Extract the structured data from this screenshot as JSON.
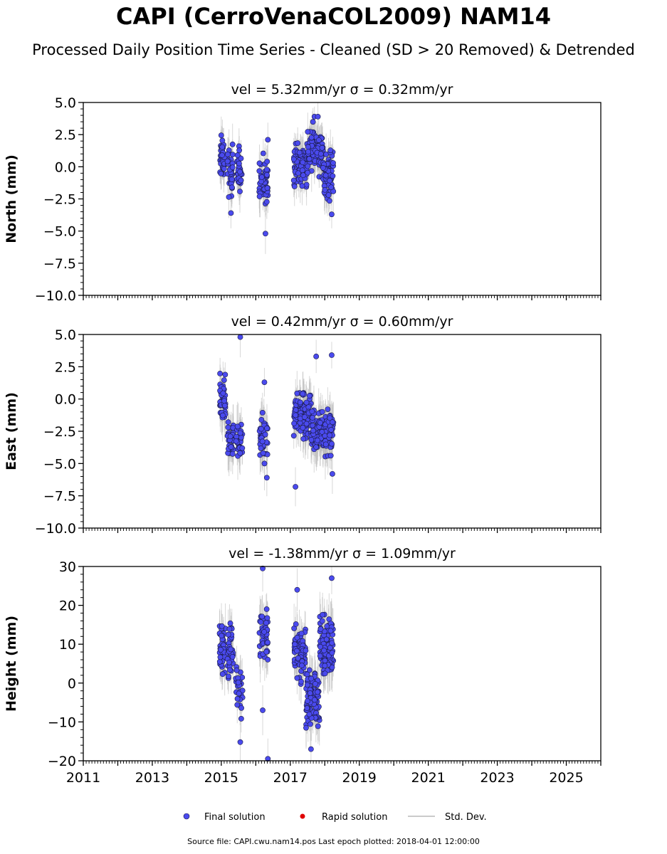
{
  "figure": {
    "title": "CAPI (CerroVenaCOL2009) NAM14",
    "subtitle": "Processed Daily Position Time Series - Cleaned (SD > 20 Removed) & Detrended",
    "source_note": "Source file: CAPI.cwu.nam14.pos  Last epoch plotted: 2018-04-01 12:00:00"
  },
  "colors": {
    "final": "#4a4aee",
    "final_edge": "#1a1a44",
    "rapid": "#e00000",
    "stddev": "#b8b8b8"
  },
  "chart_data": [
    {
      "type": "scatter",
      "title": "vel = 5.32mm/yr   σ = 0.32mm/yr",
      "ylabel": "North (mm)",
      "xlim": [
        2011,
        2026
      ],
      "ylim": [
        -10,
        5
      ],
      "yticks": [
        "−10.0",
        "−7.5",
        "−5.0",
        "−2.5",
        "0.0",
        "2.5",
        "5.0"
      ],
      "ytick_values": [
        -10,
        -7.5,
        -5,
        -2.5,
        0,
        2.5,
        5
      ],
      "clusters": [
        {
          "from": 2014.95,
          "to": 2015.1,
          "mean": 0.7,
          "spread": 1.2,
          "n": 40,
          "err": 1.5
        },
        {
          "from": 2015.18,
          "to": 2015.33,
          "mean": -0.3,
          "spread": 1.4,
          "n": 35,
          "err": 1.6
        },
        {
          "from": 2015.45,
          "to": 2015.6,
          "mean": -0.2,
          "spread": 1.3,
          "n": 30,
          "err": 1.6
        },
        {
          "from": 2016.1,
          "to": 2016.35,
          "mean": -1.2,
          "spread": 1.5,
          "n": 45,
          "err": 1.8
        },
        {
          "from": 2017.1,
          "to": 2017.5,
          "mean": 0.2,
          "spread": 1.2,
          "n": 90,
          "err": 1.5
        },
        {
          "from": 2017.5,
          "to": 2017.95,
          "mean": 1.3,
          "spread": 1.3,
          "n": 110,
          "err": 1.5
        },
        {
          "from": 2017.95,
          "to": 2018.25,
          "mean": -0.6,
          "spread": 1.5,
          "n": 70,
          "err": 1.6
        }
      ],
      "points": [
        [
          2016.28,
          -5.2
        ],
        [
          2016.35,
          2.1
        ],
        [
          2017.7,
          3.9
        ],
        [
          2017.8,
          3.9
        ],
        [
          2015.28,
          -3.6
        ],
        [
          2018.2,
          -3.7
        ]
      ]
    },
    {
      "type": "scatter",
      "title": "vel = 0.42mm/yr   σ = 0.60mm/yr",
      "ylabel": "East (mm)",
      "xlim": [
        2011,
        2026
      ],
      "ylim": [
        -10,
        5
      ],
      "yticks": [
        "−10.0",
        "−7.5",
        "−5.0",
        "−2.5",
        "0.0",
        "2.5",
        "5.0"
      ],
      "ytick_values": [
        -10,
        -7.5,
        -5,
        -2.5,
        0,
        2.5,
        5
      ],
      "clusters": [
        {
          "from": 2014.95,
          "to": 2015.12,
          "mean": -0.3,
          "spread": 1.4,
          "n": 40,
          "err": 1.8
        },
        {
          "from": 2015.18,
          "to": 2015.35,
          "mean": -3.2,
          "spread": 1.0,
          "n": 35,
          "err": 1.8
        },
        {
          "from": 2015.42,
          "to": 2015.62,
          "mean": -3.2,
          "spread": 1.2,
          "n": 30,
          "err": 1.8
        },
        {
          "from": 2016.1,
          "to": 2016.35,
          "mean": -3.0,
          "spread": 1.4,
          "n": 45,
          "err": 2.0
        },
        {
          "from": 2017.1,
          "to": 2017.6,
          "mean": -1.2,
          "spread": 1.3,
          "n": 110,
          "err": 1.8
        },
        {
          "from": 2017.6,
          "to": 2018.25,
          "mean": -2.5,
          "spread": 1.2,
          "n": 150,
          "err": 1.8
        }
      ],
      "points": [
        [
          2015.55,
          4.8
        ],
        [
          2016.25,
          1.3
        ],
        [
          2017.15,
          -6.8
        ],
        [
          2018.2,
          3.4
        ],
        [
          2016.32,
          -6.1
        ],
        [
          2017.75,
          3.3
        ],
        [
          2018.22,
          -5.8
        ]
      ]
    },
    {
      "type": "scatter",
      "title": "vel = -1.38mm/yr   σ = 1.09mm/yr",
      "ylabel": "Height (mm)",
      "xlim": [
        2011,
        2026
      ],
      "ylim": [
        -20,
        30
      ],
      "yticks": [
        "−20",
        "−10",
        "0",
        "10",
        "20",
        "30"
      ],
      "ytick_values": [
        -20,
        -10,
        0,
        10,
        20,
        30
      ],
      "clusters": [
        {
          "from": 2014.95,
          "to": 2015.12,
          "mean": 9,
          "spread": 5,
          "n": 40,
          "err": 6
        },
        {
          "from": 2015.18,
          "to": 2015.35,
          "mean": 8,
          "spread": 5,
          "n": 35,
          "err": 6
        },
        {
          "from": 2015.42,
          "to": 2015.62,
          "mean": -1,
          "spread": 5,
          "n": 30,
          "err": 6
        },
        {
          "from": 2016.1,
          "to": 2016.35,
          "mean": 13,
          "spread": 5,
          "n": 45,
          "err": 7
        },
        {
          "from": 2017.1,
          "to": 2017.45,
          "mean": 8,
          "spread": 5,
          "n": 70,
          "err": 6
        },
        {
          "from": 2017.45,
          "to": 2017.85,
          "mean": -4,
          "spread": 5,
          "n": 100,
          "err": 6
        },
        {
          "from": 2017.85,
          "to": 2018.25,
          "mean": 10,
          "spread": 6,
          "n": 90,
          "err": 7
        }
      ],
      "points": [
        [
          2016.2,
          29.5
        ],
        [
          2016.35,
          -19.5
        ],
        [
          2017.2,
          24
        ],
        [
          2018.2,
          27
        ],
        [
          2015.55,
          -15.2
        ],
        [
          2016.2,
          -7
        ],
        [
          2017.6,
          -17
        ]
      ]
    }
  ],
  "xaxis": {
    "tick_labels": [
      "2011",
      "2013",
      "2015",
      "2017",
      "2019",
      "2021",
      "2023",
      "2025"
    ],
    "tick_values": [
      2011,
      2013,
      2015,
      2017,
      2019,
      2021,
      2023,
      2025
    ]
  },
  "legend": {
    "final_label": "Final solution",
    "rapid_label": "Rapid solution",
    "stddev_label": "Std. Dev."
  }
}
